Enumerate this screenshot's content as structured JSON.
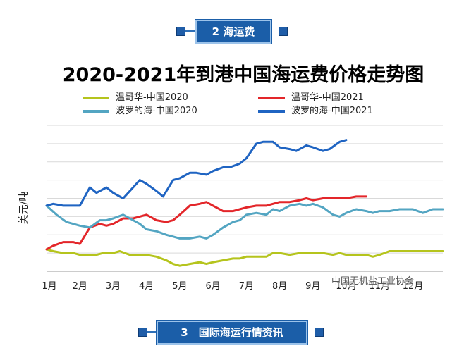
{
  "header_top": {
    "label": "2 海运费"
  },
  "header_bottom": {
    "label": "3　国际海运行情资讯"
  },
  "watermark": "中国无机盐工业协会",
  "chart_data": {
    "type": "line",
    "title": "2020-2021年到港中国海运费价格走势图",
    "ylabel": "美元/吨",
    "xlabel": "",
    "x_ticks": [
      "1月",
      "2月",
      "3月",
      "4月",
      "5月",
      "6月",
      "7月",
      "8月",
      "9月",
      "10月",
      "11月",
      "12月"
    ],
    "y_ticks_labeled": false,
    "ylim": [
      0,
      8
    ],
    "grid": "horizontal",
    "legend_position": "top",
    "x_unit": "month (1 = January)",
    "series": [
      {
        "name": "温哥华-中国2020",
        "color": "#b5c41d",
        "x": [
          1,
          1.2,
          1.5,
          1.8,
          2,
          2.2,
          2.5,
          2.7,
          3,
          3.2,
          3.5,
          3.8,
          4,
          4.3,
          4.6,
          4.8,
          5,
          5.3,
          5.6,
          5.8,
          6,
          6.3,
          6.6,
          6.8,
          7,
          7.3,
          7.6,
          7.8,
          8,
          8.3,
          8.6,
          8.8,
          9,
          9.3,
          9.6,
          9.8,
          10,
          10.3,
          10.6,
          10.8,
          11,
          11.3,
          11.6,
          11.8,
          12,
          12.3,
          12.6,
          12.9
        ],
        "values": [
          1.2,
          1.1,
          1.0,
          1.0,
          0.9,
          0.9,
          0.9,
          1.0,
          1.0,
          1.1,
          0.9,
          0.9,
          0.9,
          0.8,
          0.6,
          0.4,
          0.3,
          0.4,
          0.5,
          0.4,
          0.5,
          0.6,
          0.7,
          0.7,
          0.8,
          0.8,
          0.8,
          1.0,
          1.0,
          0.9,
          1.0,
          1.0,
          1.0,
          1.0,
          0.9,
          1.0,
          0.9,
          0.9,
          0.9,
          0.8,
          0.9,
          1.1,
          1.1,
          1.1,
          1.1,
          1.1,
          1.1,
          1.1
        ]
      },
      {
        "name": "温哥华-中国2021",
        "color": "#e3262a",
        "x": [
          1,
          1.2,
          1.5,
          1.8,
          2,
          2.3,
          2.6,
          2.8,
          3,
          3.3,
          3.6,
          3.8,
          4,
          4.3,
          4.6,
          4.8,
          5,
          5.3,
          5.6,
          5.8,
          6,
          6.3,
          6.6,
          6.8,
          7,
          7.3,
          7.6,
          7.8,
          8,
          8.3,
          8.6,
          8.8,
          9,
          9.3,
          9.6,
          9.8,
          10,
          10.3,
          10.6
        ],
        "values": [
          1.2,
          1.4,
          1.6,
          1.6,
          1.5,
          2.4,
          2.6,
          2.5,
          2.6,
          2.9,
          2.9,
          3.0,
          3.1,
          2.8,
          2.7,
          2.8,
          3.1,
          3.6,
          3.7,
          3.8,
          3.6,
          3.3,
          3.3,
          3.4,
          3.5,
          3.6,
          3.6,
          3.7,
          3.8,
          3.8,
          3.9,
          4.0,
          3.9,
          4.0,
          4.0,
          4.0,
          4.0,
          4.1,
          4.1
        ]
      },
      {
        "name": "波罗的海-中国2020",
        "color": "#53a5c2",
        "x": [
          1,
          1.3,
          1.6,
          1.8,
          2,
          2.3,
          2.6,
          2.8,
          3,
          3.3,
          3.6,
          3.8,
          4,
          4.3,
          4.6,
          4.8,
          5,
          5.3,
          5.6,
          5.8,
          6,
          6.3,
          6.6,
          6.8,
          7,
          7.3,
          7.6,
          7.8,
          8,
          8.3,
          8.6,
          8.8,
          9,
          9.3,
          9.6,
          9.8,
          10,
          10.3,
          10.6,
          10.8,
          11,
          11.3,
          11.6,
          11.8,
          12,
          12.3,
          12.6,
          12.9
        ],
        "values": [
          3.6,
          3.1,
          2.7,
          2.6,
          2.5,
          2.4,
          2.8,
          2.8,
          2.9,
          3.1,
          2.8,
          2.6,
          2.3,
          2.2,
          2.0,
          1.9,
          1.8,
          1.8,
          1.9,
          1.8,
          2.0,
          2.4,
          2.7,
          2.8,
          3.1,
          3.2,
          3.1,
          3.4,
          3.3,
          3.6,
          3.7,
          3.6,
          3.7,
          3.5,
          3.1,
          3.0,
          3.2,
          3.4,
          3.3,
          3.2,
          3.3,
          3.3,
          3.4,
          3.4,
          3.4,
          3.2,
          3.4,
          3.4
        ]
      },
      {
        "name": "波罗的海-中国2021",
        "color": "#1f64c2",
        "x": [
          1,
          1.2,
          1.5,
          1.8,
          2,
          2.3,
          2.5,
          2.8,
          3,
          3.3,
          3.5,
          3.8,
          4,
          4.3,
          4.5,
          4.8,
          5,
          5.3,
          5.5,
          5.8,
          6,
          6.3,
          6.5,
          6.8,
          7,
          7.3,
          7.5,
          7.8,
          8,
          8.3,
          8.5,
          8.8,
          9,
          9.3,
          9.5,
          9.8,
          10
        ],
        "values": [
          3.6,
          3.7,
          3.6,
          3.6,
          3.6,
          4.6,
          4.3,
          4.6,
          4.3,
          4.0,
          4.4,
          5.0,
          4.8,
          4.4,
          4.1,
          5.0,
          5.1,
          5.4,
          5.4,
          5.3,
          5.5,
          5.7,
          5.7,
          5.9,
          6.2,
          7.0,
          7.1,
          7.1,
          6.8,
          6.7,
          6.6,
          6.9,
          6.8,
          6.6,
          6.7,
          7.1,
          7.2
        ]
      }
    ]
  }
}
